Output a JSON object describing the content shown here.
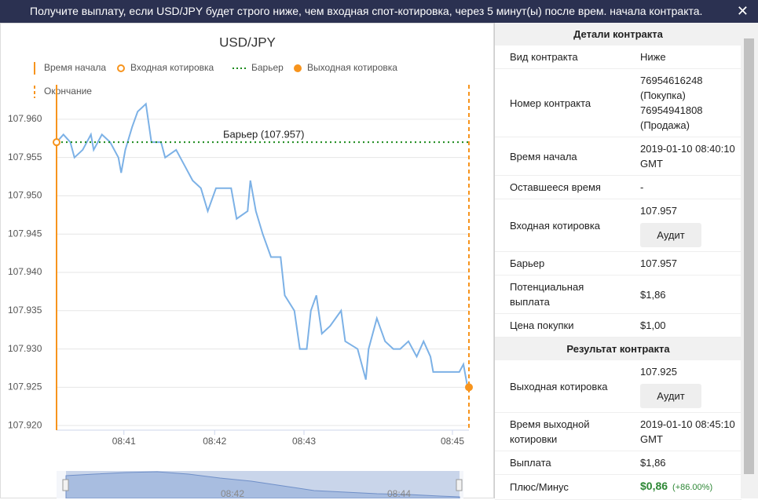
{
  "header": {
    "text": "Получите выплату, если USD/JPY будет строго ниже, чем входная спот-котировка, через 5 минут(ы) после врем. начала контракта.",
    "close": "✕"
  },
  "chart_data": {
    "type": "line",
    "title": "USD/JPY",
    "legend": [
      "Время начала",
      "Входная котировка",
      "Барьер",
      "Выходная котировка",
      "Окончание"
    ],
    "x": [
      0,
      5,
      10,
      13,
      19,
      25,
      27,
      33,
      39,
      45,
      47,
      50,
      55,
      59,
      65,
      69,
      76,
      79,
      87,
      93,
      99,
      105,
      110,
      116,
      127,
      131,
      139,
      141,
      145,
      150,
      156,
      163,
      166,
      173,
      177,
      182,
      185,
      189,
      193,
      199,
      207,
      210,
      219,
      225,
      227,
      233,
      239,
      245,
      250,
      256,
      262,
      267,
      272,
      274,
      282,
      293,
      296,
      299
    ],
    "series": [
      {
        "name": "USD/JPY",
        "color": "#7cb1e6",
        "values": [
          107.957,
          107.958,
          107.957,
          107.955,
          107.956,
          107.958,
          107.956,
          107.958,
          107.957,
          107.955,
          107.953,
          107.956,
          107.959,
          107.961,
          107.962,
          107.957,
          107.957,
          107.955,
          107.956,
          107.954,
          107.952,
          107.951,
          107.948,
          107.951,
          107.951,
          107.947,
          107.948,
          107.952,
          107.948,
          107.945,
          107.942,
          107.942,
          107.937,
          107.935,
          107.93,
          107.93,
          107.935,
          107.937,
          107.932,
          107.933,
          107.935,
          107.931,
          107.93,
          107.926,
          107.93,
          107.934,
          107.931,
          107.93,
          107.93,
          107.931,
          107.929,
          107.931,
          107.929,
          107.927,
          107.927,
          107.927,
          107.928,
          107.925
        ]
      }
    ],
    "barrier": {
      "value": 107.957,
      "label": "Барьер (107.957)",
      "color": "#1a8a1a"
    },
    "entry_spot": {
      "x": 0,
      "value": 107.957
    },
    "exit_spot": {
      "x": 300,
      "value": 107.925
    },
    "start_x": 0,
    "end_x": 300,
    "marker_color": "#f7941d",
    "xlim": [
      0,
      300
    ],
    "xticks": [
      {
        "value": 49,
        "label": "08:41"
      },
      {
        "value": 115,
        "label": "08:42"
      },
      {
        "value": 180,
        "label": "08:43"
      },
      {
        "value": 288,
        "label": "08:45"
      }
    ],
    "ylim": [
      107.9194,
      107.9645
    ],
    "yticks": [
      {
        "value": 107.92,
        "label": "107.920"
      },
      {
        "value": 107.925,
        "label": "107.925"
      },
      {
        "value": 107.93,
        "label": "107.930"
      },
      {
        "value": 107.935,
        "label": "107.935"
      },
      {
        "value": 107.94,
        "label": "107.940"
      },
      {
        "value": 107.945,
        "label": "107.945"
      },
      {
        "value": 107.95,
        "label": "107.950"
      },
      {
        "value": 107.955,
        "label": "107.955"
      },
      {
        "value": 107.96,
        "label": "107.960"
      }
    ],
    "grid": true
  },
  "navigator": {
    "labels": [
      "08:42",
      "08:44"
    ]
  },
  "details": {
    "title": "Детали контракта",
    "button": "Аудит",
    "rows": [
      {
        "label": [
          "Вид контракта"
        ],
        "value": [
          "Ниже"
        ]
      },
      {
        "label": [
          "Номер контракта"
        ],
        "value": [
          "76954616248",
          "(Покупка)",
          "76954941808",
          "(Продажа)"
        ]
      },
      {
        "label": [
          "Время начала"
        ],
        "value": [
          "2019-01-10 08:40:10",
          "GMT"
        ]
      },
      {
        "label": [
          "Оставшееся время"
        ],
        "value": [
          "-"
        ]
      },
      {
        "label": [
          "Входная котировка"
        ],
        "value": [
          "107.957"
        ],
        "audit": true
      },
      {
        "label": [
          "Барьер"
        ],
        "value": [
          "107.957"
        ]
      },
      {
        "label": [
          "Потенциальная",
          "выплата"
        ],
        "value": [
          "$1,86"
        ]
      },
      {
        "label": [
          "Цена покупки"
        ],
        "value": [
          "$1,00"
        ]
      }
    ]
  },
  "result": {
    "title": "Результат контракта",
    "rows": [
      {
        "label": [
          "Выходная котировка"
        ],
        "value": [
          "107.925"
        ],
        "audit": true
      },
      {
        "label": [
          "Время выходной",
          "котировки"
        ],
        "value": [
          "2019-01-10 08:45:10",
          "GMT"
        ]
      },
      {
        "label": [
          "Выплата"
        ],
        "value": [
          "$1,86"
        ]
      },
      {
        "label": [
          "Плюс/Минус"
        ],
        "value": [
          "$0,86"
        ],
        "extra": "(+86.00%)",
        "positive": true
      }
    ]
  }
}
